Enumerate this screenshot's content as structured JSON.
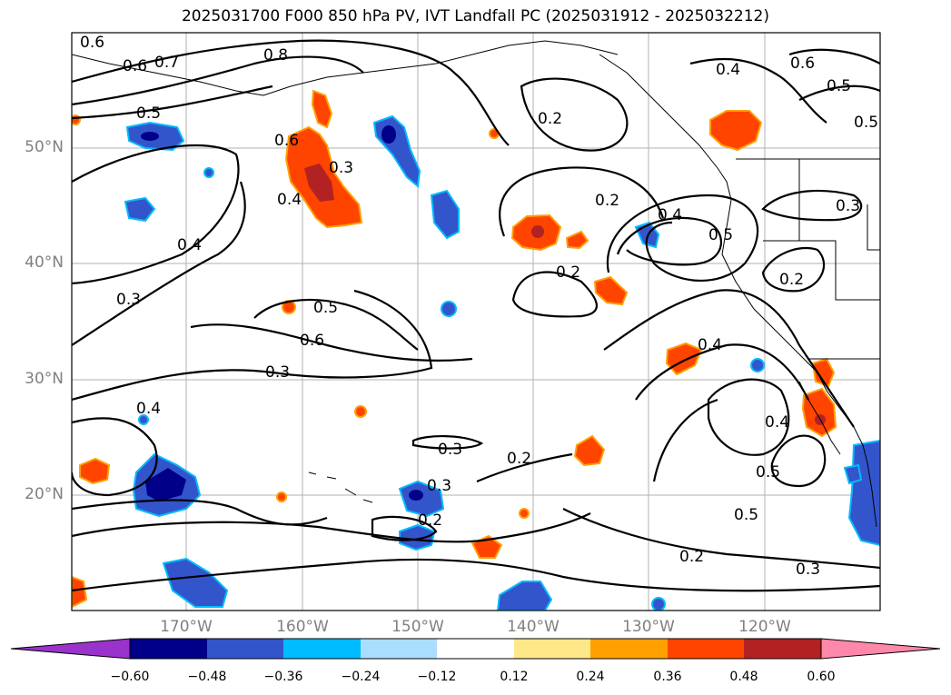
{
  "title": "2025031700 F000 850 hPa PV, IVT Landfall PC (2025031912 - 2025032212)",
  "lat_labels": [
    "50°N",
    "40°N",
    "30°N",
    "20°N"
  ],
  "lon_labels": [
    "170°W",
    "160°W",
    "150°W",
    "140°W",
    "130°W",
    "120°W"
  ],
  "colorbar": {
    "ticks": [
      "−0.60",
      "−0.48",
      "−0.36",
      "−0.24",
      "−0.12",
      "0.12",
      "0.24",
      "0.36",
      "0.48",
      "0.60"
    ],
    "colors": [
      "#9933cc",
      "#000088",
      "#3355cc",
      "#00bbff",
      "#aaddff",
      "#ffffff",
      "#ffe888",
      "#ffa000",
      "#ff4400",
      "#b22222",
      "#ff88aa"
    ],
    "extend": "both"
  },
  "contour_labels": [
    "0.6",
    "0.7",
    "0.8",
    "0.6",
    "0.5",
    "0.6",
    "0.3",
    "0.4",
    "0.4",
    "0.3",
    "0.5",
    "0.6",
    "0.3",
    "0.4",
    "0.2",
    "0.2",
    "0.2",
    "0.4",
    "0.5",
    "0.2",
    "0.3",
    "0.4",
    "0.5",
    "0.5",
    "0.6",
    "0.4",
    "0.3",
    "0.2",
    "0.4",
    "0.5",
    "0.5",
    "0.2",
    "0.3",
    "0.2",
    "0.3"
  ],
  "map": {
    "projection": "PlateCarree",
    "extent_lon": [
      -180,
      -110
    ],
    "extent_lat": [
      10,
      60
    ],
    "fill_variable": "850 hPa PV",
    "contour_variable": "IVT Landfall PC",
    "gridlines": true
  }
}
